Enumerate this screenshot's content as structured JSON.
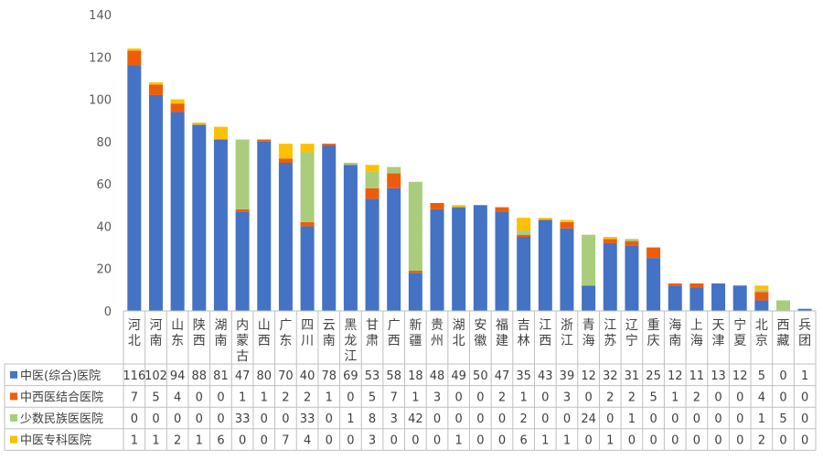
{
  "chart_data": {
    "type": "bar",
    "stacked": true,
    "grid": false,
    "legend_placement": "data-table-left",
    "ylim": [
      0,
      140
    ],
    "yticks": [
      "0",
      "20",
      "40",
      "60",
      "80",
      "100",
      "120",
      "140"
    ],
    "categories": [
      "河北",
      "河南",
      "山东",
      "陕西",
      "湖南",
      "内蒙古",
      "山西",
      "广东",
      "四川",
      "云南",
      "黑龙江",
      "甘肃",
      "广西",
      "新疆",
      "贵州",
      "湖北",
      "安徽",
      "福建",
      "吉林",
      "江西",
      "浙江",
      "青海",
      "江苏",
      "辽宁",
      "重庆",
      "海南",
      "上海",
      "天津",
      "宁夏",
      "北京",
      "西藏",
      "兵团"
    ],
    "series": [
      {
        "name": "中医(综合)医院",
        "color": "#4472C4",
        "values": [
          116,
          102,
          94,
          88,
          81,
          47,
          80,
          70,
          40,
          78,
          69,
          53,
          58,
          18,
          48,
          49,
          50,
          47,
          35,
          43,
          39,
          12,
          32,
          31,
          25,
          12,
          11,
          13,
          12,
          5,
          0,
          1
        ]
      },
      {
        "name": "中西医结合医院",
        "color": "#ED5D09",
        "values": [
          7,
          5,
          4,
          0,
          0,
          1,
          1,
          2,
          2,
          1,
          0,
          5,
          7,
          1,
          3,
          0,
          0,
          2,
          1,
          0,
          3,
          0,
          2,
          2,
          5,
          1,
          2,
          0,
          0,
          4,
          0,
          0
        ]
      },
      {
        "name": "少数民族医医院",
        "color": "#A9CD7D",
        "values": [
          0,
          0,
          0,
          0,
          0,
          33,
          0,
          0,
          33,
          0,
          1,
          8,
          3,
          42,
          0,
          0,
          0,
          0,
          2,
          0,
          0,
          24,
          0,
          1,
          0,
          0,
          0,
          0,
          0,
          1,
          5,
          0
        ]
      },
      {
        "name": "中医专科医院",
        "color": "#FFC000",
        "values": [
          1,
          1,
          2,
          1,
          6,
          0,
          0,
          7,
          4,
          0,
          0,
          3,
          0,
          0,
          0,
          1,
          0,
          0,
          6,
          1,
          1,
          0,
          1,
          0,
          0,
          0,
          0,
          0,
          0,
          2,
          0,
          0
        ]
      }
    ]
  }
}
